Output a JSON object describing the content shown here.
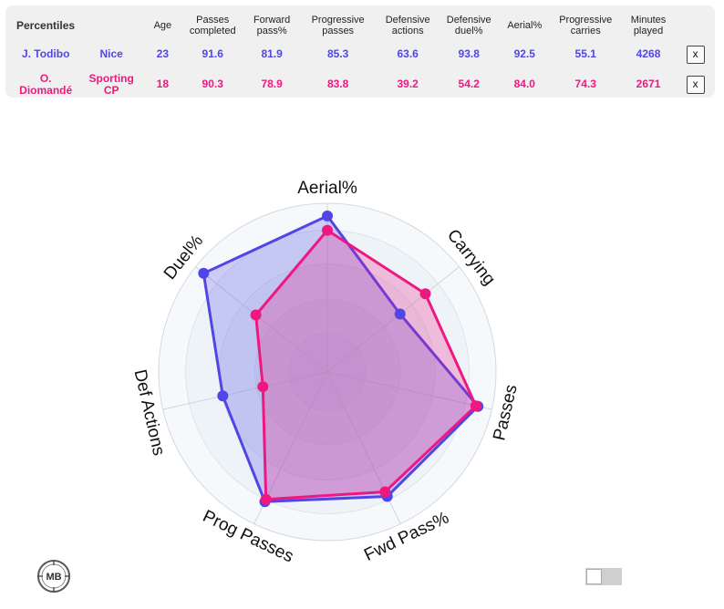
{
  "table": {
    "title": "Percentiles",
    "columns": [
      "Age",
      "Passes completed",
      "Forward pass%",
      "Progressive passes",
      "Defensive actions",
      "Defensive duel%",
      "Aerial%",
      "Progressive carries",
      "Minutes played"
    ],
    "rows": [
      {
        "player": "J. Todibo",
        "team": "Nice",
        "values": [
          "23",
          "91.6",
          "81.9",
          "85.3",
          "63.6",
          "93.8",
          "92.5",
          "55.1",
          "4268"
        ],
        "remove_label": "x",
        "color": "#5046e8"
      },
      {
        "player": "O. Diomandé",
        "team": "Sporting CP",
        "values": [
          "18",
          "90.3",
          "78.9",
          "83.8",
          "39.2",
          "54.2",
          "84.0",
          "74.3",
          "2671"
        ],
        "remove_label": "x",
        "color": "#ef1881"
      }
    ]
  },
  "chart_data": {
    "type": "radar",
    "axes": [
      "Aerial%",
      "Carrying",
      "Passes",
      "Fwd Pass%",
      "Prog Passes",
      "Def Actions",
      "Duel%"
    ],
    "range": [
      0,
      100
    ],
    "series": [
      {
        "name": "J. Todibo",
        "values": [
          92.5,
          55.1,
          91.6,
          81.9,
          85.3,
          63.6,
          93.8
        ],
        "color": "#5046e8"
      },
      {
        "name": "O. Diomandé",
        "values": [
          84.0,
          74.3,
          90.3,
          78.9,
          83.8,
          39.2,
          54.2
        ],
        "color": "#ef1881"
      }
    ]
  },
  "logo_text": "MB",
  "theme": {
    "blue": "#5046e8",
    "pink": "#ef1881"
  }
}
